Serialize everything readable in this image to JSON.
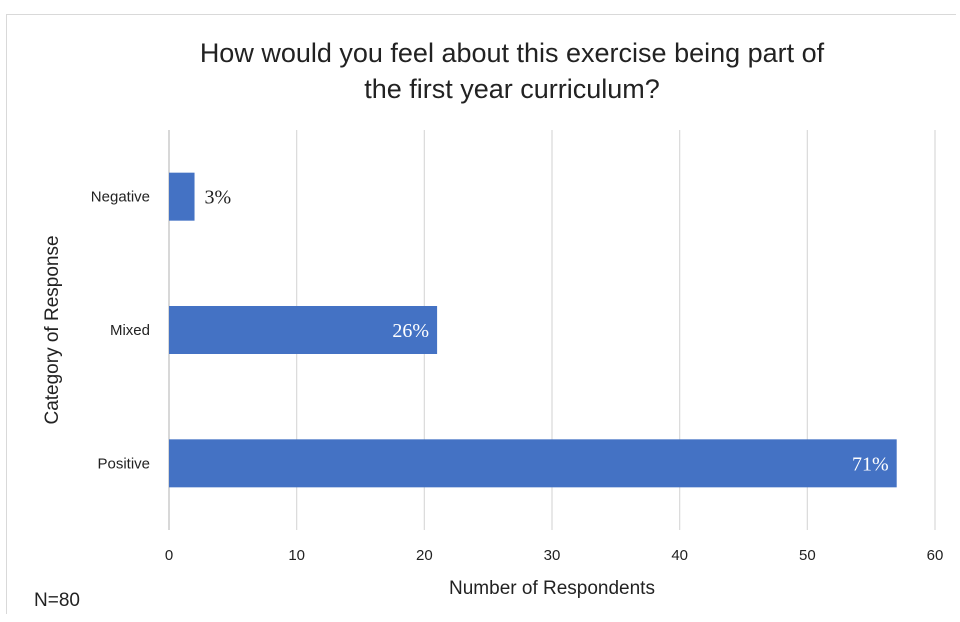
{
  "chart_data": {
    "type": "bar",
    "orientation": "horizontal",
    "title": "How would you feel about this exercise being part of the first year curriculum?",
    "title_lines": [
      "How would you feel about this exercise being part of",
      "the first year curriculum?"
    ],
    "xlabel": "Number of Respondents",
    "ylabel": "Category of Response",
    "categories": [
      "Negative",
      "Mixed",
      "Positive"
    ],
    "values": [
      2,
      21,
      57
    ],
    "data_labels": [
      "3%",
      "26%",
      "71%"
    ],
    "xlim": [
      0,
      60
    ],
    "xticks": [
      "0",
      "10",
      "20",
      "30",
      "40",
      "50",
      "60"
    ],
    "grid": "vertical",
    "bar_color": "#4472c4",
    "note": "N=80"
  }
}
